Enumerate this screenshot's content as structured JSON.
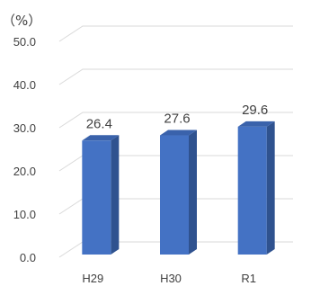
{
  "chart_data": {
    "type": "bar",
    "unit_label": "（%）",
    "categories": [
      "H29",
      "H30",
      "R1"
    ],
    "values": [
      26.4,
      27.6,
      29.6
    ],
    "data_labels": [
      "26.4",
      "27.6",
      "29.6"
    ],
    "y_ticks": [
      "0.0",
      "10.0",
      "20.0",
      "30.0",
      "40.0",
      "50.0"
    ],
    "ylim": [
      0,
      50
    ],
    "grid": true,
    "style": "3d-column",
    "colors": {
      "bar_front": "#4472C4",
      "bar_side": "#2F528F",
      "bar_top": "#3A62AB",
      "grid": "#D9D9D9",
      "text": "#404040"
    }
  }
}
